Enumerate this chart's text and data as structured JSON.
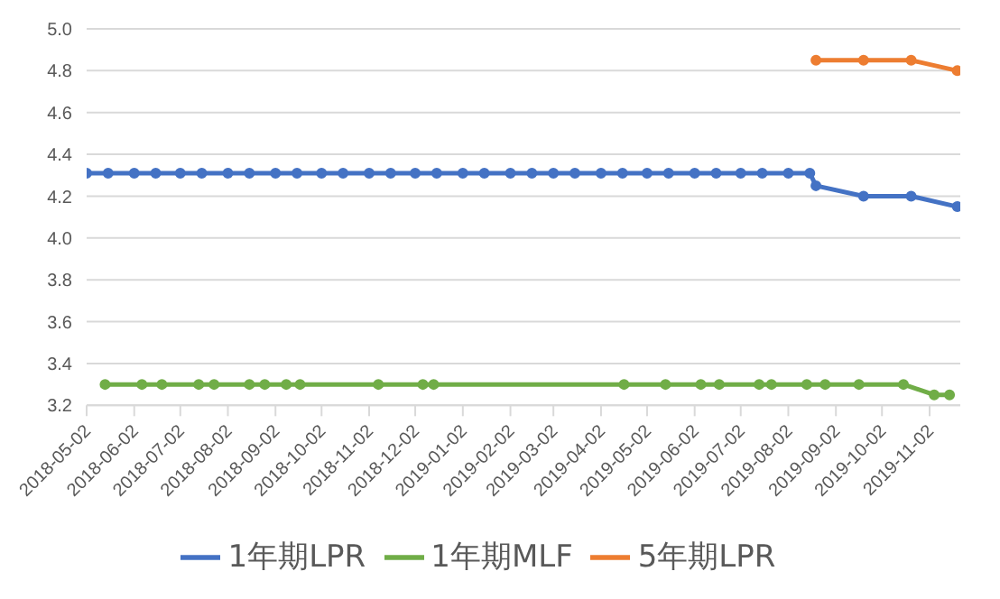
{
  "chart_data": {
    "type": "line",
    "xlim": [
      "2018-05-02",
      "2019-11-22"
    ],
    "ylim": [
      3.2,
      5.0
    ],
    "yticks": [
      3.2,
      3.4,
      3.6,
      3.8,
      {
        "value": 4.0,
        "label": "4.0"
      },
      4.2,
      4.4,
      4.6,
      4.8,
      {
        "value": 5.0,
        "label": "5.0"
      }
    ],
    "xticks": [
      "2018-05-02",
      "2018-06-02",
      "2018-07-02",
      "2018-08-02",
      "2018-09-02",
      "2018-10-02",
      "2018-11-02",
      "2018-12-02",
      "2019-01-02",
      "2019-02-02",
      "2019-03-02",
      "2019-04-02",
      "2019-05-02",
      "2019-06-02",
      "2019-07-02",
      "2019-08-02",
      "2019-09-02",
      "2019-10-02",
      "2019-11-02"
    ],
    "grid": "y",
    "legend": "bottom",
    "marker": "circle",
    "line_style": "solid",
    "series": [
      {
        "name": "1年期LPR",
        "color": "#4472c4",
        "x": [
          "2018-05-02",
          "2018-05-16",
          "2018-06-02",
          "2018-06-16",
          "2018-07-02",
          "2018-07-16",
          "2018-08-02",
          "2018-08-16",
          "2018-09-02",
          "2018-09-16",
          "2018-10-02",
          "2018-10-16",
          "2018-11-02",
          "2018-11-16",
          "2018-12-02",
          "2018-12-16",
          "2019-01-02",
          "2019-01-16",
          "2019-02-02",
          "2019-02-16",
          "2019-03-02",
          "2019-03-16",
          "2019-04-02",
          "2019-04-16",
          "2019-05-02",
          "2019-05-16",
          "2019-06-02",
          "2019-06-16",
          "2019-07-02",
          "2019-07-16",
          "2019-08-02",
          "2019-08-16",
          "2019-08-20",
          "2019-09-20",
          "2019-10-21",
          "2019-11-20"
        ],
        "values": [
          4.31,
          4.31,
          4.31,
          4.31,
          4.31,
          4.31,
          4.31,
          4.31,
          4.31,
          4.31,
          4.31,
          4.31,
          4.31,
          4.31,
          4.31,
          4.31,
          4.31,
          4.31,
          4.31,
          4.31,
          4.31,
          4.31,
          4.31,
          4.31,
          4.31,
          4.31,
          4.31,
          4.31,
          4.31,
          4.31,
          4.31,
          4.31,
          4.25,
          4.2,
          4.2,
          4.15
        ]
      },
      {
        "name": "5年期LPR",
        "color": "#ed7d31",
        "x": [
          "2019-08-20",
          "2019-09-20",
          "2019-10-21",
          "2019-11-20"
        ],
        "values": [
          4.85,
          4.85,
          4.85,
          4.8
        ]
      },
      {
        "name": "1年期MLF",
        "color": "#70ad47",
        "x": [
          "2018-05-14",
          "2018-06-07",
          "2018-06-20",
          "2018-07-14",
          "2018-07-24",
          "2018-08-16",
          "2018-08-26",
          "2018-09-09",
          "2018-09-18",
          "2018-11-08",
          "2018-12-07",
          "2018-12-14",
          "2019-04-17",
          "2019-05-14",
          "2019-06-06",
          "2019-06-18",
          "2019-07-14",
          "2019-07-22",
          "2019-08-14",
          "2019-08-26",
          "2019-09-17",
          "2019-10-16",
          "2019-11-05",
          "2019-11-15"
        ],
        "values": [
          3.3,
          3.3,
          3.3,
          3.3,
          3.3,
          3.3,
          3.3,
          3.3,
          3.3,
          3.3,
          3.3,
          3.3,
          3.3,
          3.3,
          3.3,
          3.3,
          3.3,
          3.3,
          3.3,
          3.3,
          3.3,
          3.3,
          3.25,
          3.25
        ]
      }
    ]
  }
}
